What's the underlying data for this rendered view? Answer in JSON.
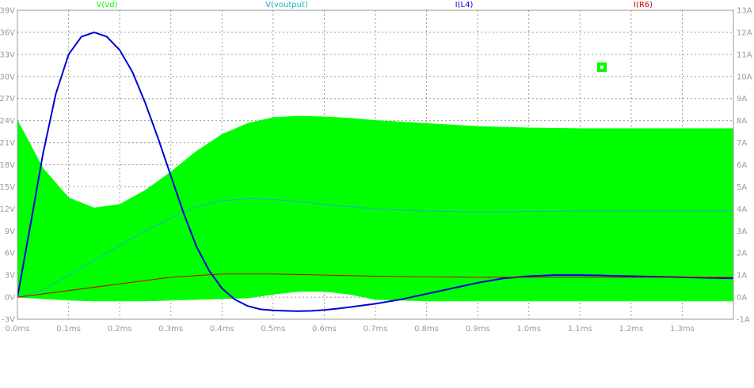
{
  "chart_data": {
    "type": "line",
    "x_unit": "ms",
    "x_range": [
      0,
      1.4
    ],
    "x_ticks": [
      "0.0ms",
      "0.1ms",
      "0.2ms",
      "0.3ms",
      "0.4ms",
      "0.5ms",
      "0.6ms",
      "0.7ms",
      "0.8ms",
      "0.9ms",
      "1.0ms",
      "1.1ms",
      "1.2ms",
      "1.3ms"
    ],
    "x_tick_values": [
      0,
      0.1,
      0.2,
      0.3,
      0.4,
      0.5,
      0.6,
      0.7,
      0.8,
      0.9,
      1.0,
      1.1,
      1.2,
      1.3
    ],
    "left_axis": {
      "unit": "V",
      "range": [
        -3,
        39
      ],
      "ticks": [
        "-3V",
        "0V",
        "3V",
        "6V",
        "9V",
        "12V",
        "15V",
        "18V",
        "21V",
        "24V",
        "27V",
        "30V",
        "33V",
        "36V",
        "39V"
      ],
      "tick_values": [
        -3,
        0,
        3,
        6,
        9,
        12,
        15,
        18,
        21,
        24,
        27,
        30,
        33,
        36,
        39
      ]
    },
    "right_axis": {
      "unit": "A",
      "range": [
        -1,
        13
      ],
      "ticks": [
        "-1A",
        "0A",
        "1A",
        "2A",
        "3A",
        "4A",
        "5A",
        "6A",
        "7A",
        "8A",
        "9A",
        "10A",
        "11A",
        "12A",
        "13A"
      ],
      "tick_values": [
        -1,
        0,
        1,
        2,
        3,
        4,
        5,
        6,
        7,
        8,
        9,
        10,
        11,
        12,
        13
      ]
    },
    "grid": true,
    "series": [
      {
        "name": "V(vd)",
        "color": "#00ff00",
        "axis": "left",
        "style": "envelope",
        "x": [
          0,
          0.05,
          0.1,
          0.15,
          0.2,
          0.25,
          0.3,
          0.35,
          0.4,
          0.45,
          0.5,
          0.55,
          0.6,
          0.65,
          0.7,
          0.8,
          0.9,
          1.0,
          1.1,
          1.2,
          1.3,
          1.4
        ],
        "upper": [
          24,
          17.5,
          13.5,
          12.1,
          12.6,
          14.5,
          17,
          19.8,
          22.1,
          23.6,
          24.4,
          24.6,
          24.5,
          24.3,
          24.0,
          23.6,
          23.2,
          23.0,
          22.9,
          22.9,
          22.9,
          22.9
        ],
        "lower": [
          0,
          -0.2,
          -0.4,
          -0.5,
          -0.5,
          -0.5,
          -0.4,
          -0.3,
          -0.2,
          -0.1,
          0.4,
          0.8,
          0.8,
          0.4,
          -0.3,
          -0.5,
          -0.5,
          -0.5,
          -0.5,
          -0.5,
          -0.5,
          -0.5
        ]
      },
      {
        "name": "V(voutput)",
        "color": "#1ab0c8",
        "axis": "left",
        "x": [
          0,
          0.05,
          0.1,
          0.15,
          0.2,
          0.25,
          0.3,
          0.35,
          0.4,
          0.45,
          0.5,
          0.55,
          0.6,
          0.7,
          0.8,
          0.9,
          1.0,
          1.1,
          1.2,
          1.3,
          1.4
        ],
        "values": [
          0,
          1.0,
          3.0,
          5.0,
          7.0,
          9.0,
          10.8,
          12.3,
          13.1,
          13.4,
          13.3,
          13.0,
          12.6,
          12.0,
          11.7,
          11.6,
          11.65,
          11.7,
          11.75,
          11.75,
          11.75
        ]
      },
      {
        "name": "I(L4)",
        "color": "#0000d8",
        "axis": "right",
        "x": [
          0,
          0.025,
          0.05,
          0.075,
          0.1,
          0.125,
          0.15,
          0.175,
          0.2,
          0.225,
          0.25,
          0.275,
          0.3,
          0.325,
          0.35,
          0.375,
          0.4,
          0.425,
          0.45,
          0.475,
          0.5,
          0.525,
          0.55,
          0.575,
          0.6,
          0.625,
          0.65,
          0.7,
          0.75,
          0.8,
          0.85,
          0.9,
          0.95,
          1.0,
          1.05,
          1.1,
          1.15,
          1.2,
          1.3,
          1.4
        ],
        "values": [
          0,
          3.2,
          6.5,
          9.2,
          11.0,
          11.8,
          12.0,
          11.8,
          11.2,
          10.2,
          8.8,
          7.2,
          5.5,
          3.8,
          2.3,
          1.2,
          0.4,
          -0.1,
          -0.4,
          -0.55,
          -0.6,
          -0.62,
          -0.63,
          -0.62,
          -0.58,
          -0.52,
          -0.45,
          -0.3,
          -0.1,
          0.15,
          0.4,
          0.65,
          0.85,
          0.95,
          1.0,
          1.0,
          0.98,
          0.95,
          0.9,
          0.85
        ]
      },
      {
        "name": "I(R6)",
        "color": "#cc0000",
        "axis": "right",
        "x": [
          0,
          0.1,
          0.2,
          0.3,
          0.4,
          0.5,
          0.6,
          0.7,
          0.8,
          0.9,
          1.0,
          1.1,
          1.2,
          1.3,
          1.4
        ],
        "values": [
          0,
          0.3,
          0.6,
          0.9,
          1.05,
          1.05,
          1.0,
          0.95,
          0.92,
          0.9,
          0.9,
          0.9,
          0.9,
          0.9,
          0.9
        ]
      }
    ],
    "legend": [
      "V(vd)",
      "V(voutput)",
      "I(L4)",
      "I(R6)"
    ]
  }
}
